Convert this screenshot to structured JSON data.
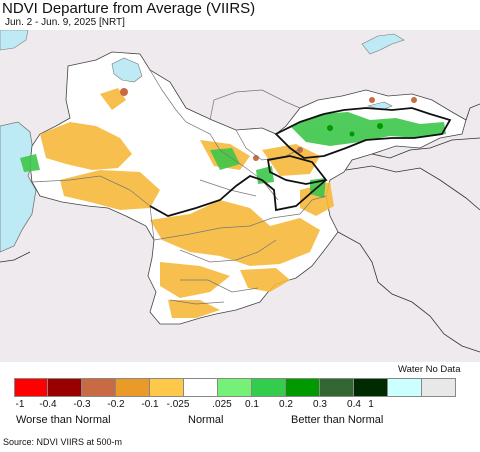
{
  "header": {
    "title": "NDVI Departure from Average (VIIRS)",
    "subtitle": "Jun. 2 - Jun. 9, 2025 [NRT]"
  },
  "map": {
    "colors": {
      "sea": "#bdeaf5",
      "land_base": "#ffffff",
      "outside_region": "#eeeaee",
      "border": "#777777",
      "bold_border": "#111111",
      "dry": "#f7b93a",
      "wet": "#3cc64a"
    }
  },
  "legend": {
    "water_label": "Water  No Data",
    "tick_labels": [
      "-1",
      "-0.4",
      "-0.3",
      "-0.2",
      "-0.1",
      "-.025",
      ".025",
      "0.1",
      "0.2",
      "0.3",
      "0.4",
      "1"
    ],
    "colors": [
      "#ff0000",
      "#990000",
      "#c86b45",
      "#ea9a26",
      "#fec84b",
      "#ffffff",
      "#75f178",
      "#33cc4c",
      "#009900",
      "#336633",
      "#002a00",
      "#ccffff",
      "#e8e8e8"
    ],
    "worse_label": "Worse than Normal",
    "normal_label": "Normal",
    "better_label": "Better than Normal"
  },
  "footer": {
    "source": "Source: NDVI VIIRS at 500-m"
  }
}
